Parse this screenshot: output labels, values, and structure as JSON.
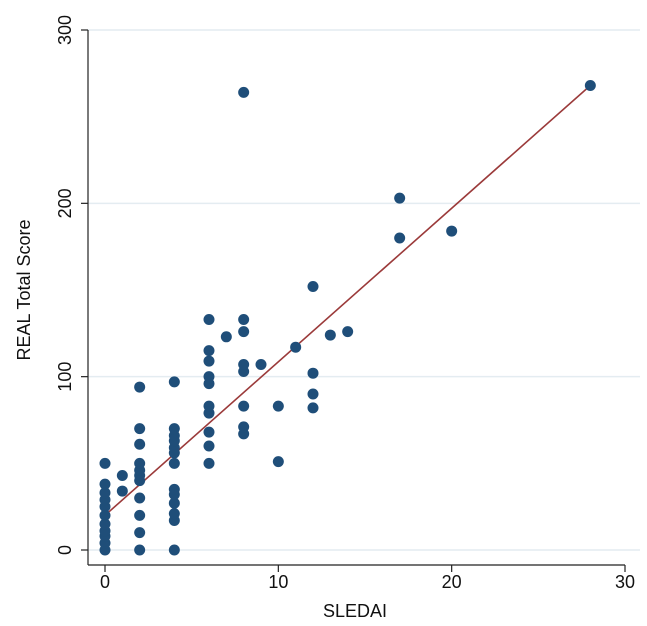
{
  "chart_data": {
    "type": "scatter",
    "xlabel": "SLEDAI",
    "ylabel": "REAL Total Score",
    "xlim": [
      0,
      30
    ],
    "ylim": [
      0,
      300
    ],
    "xticks": [
      0,
      10,
      20,
      30
    ],
    "yticks": [
      0,
      100,
      200,
      300
    ],
    "grid": "horizontal",
    "colors": {
      "point": "#1f4e79",
      "fit_line": "#9b3a3a",
      "grid": "#e4ecf1",
      "axis": "#222222"
    },
    "points": [
      {
        "x": 0,
        "y": 0
      },
      {
        "x": 0,
        "y": 4
      },
      {
        "x": 0,
        "y": 8
      },
      {
        "x": 0,
        "y": 11
      },
      {
        "x": 0,
        "y": 15
      },
      {
        "x": 0,
        "y": 20
      },
      {
        "x": 0,
        "y": 25
      },
      {
        "x": 0,
        "y": 29
      },
      {
        "x": 0,
        "y": 33
      },
      {
        "x": 0,
        "y": 38
      },
      {
        "x": 0,
        "y": 50
      },
      {
        "x": 1,
        "y": 34
      },
      {
        "x": 1,
        "y": 43
      },
      {
        "x": 2,
        "y": 0
      },
      {
        "x": 2,
        "y": 10
      },
      {
        "x": 2,
        "y": 20
      },
      {
        "x": 2,
        "y": 30
      },
      {
        "x": 2,
        "y": 40
      },
      {
        "x": 2,
        "y": 43
      },
      {
        "x": 2,
        "y": 46
      },
      {
        "x": 2,
        "y": 50
      },
      {
        "x": 2,
        "y": 61
      },
      {
        "x": 2,
        "y": 70
      },
      {
        "x": 2,
        "y": 94
      },
      {
        "x": 4,
        "y": 0
      },
      {
        "x": 4,
        "y": 17
      },
      {
        "x": 4,
        "y": 21
      },
      {
        "x": 4,
        "y": 27
      },
      {
        "x": 4,
        "y": 32
      },
      {
        "x": 4,
        "y": 35
      },
      {
        "x": 4,
        "y": 50
      },
      {
        "x": 4,
        "y": 56
      },
      {
        "x": 4,
        "y": 59
      },
      {
        "x": 4,
        "y": 63
      },
      {
        "x": 4,
        "y": 66
      },
      {
        "x": 4,
        "y": 70
      },
      {
        "x": 4,
        "y": 97
      },
      {
        "x": 6,
        "y": 50
      },
      {
        "x": 6,
        "y": 60
      },
      {
        "x": 6,
        "y": 68
      },
      {
        "x": 6,
        "y": 79
      },
      {
        "x": 6,
        "y": 83
      },
      {
        "x": 6,
        "y": 96
      },
      {
        "x": 6,
        "y": 100
      },
      {
        "x": 6,
        "y": 109
      },
      {
        "x": 6,
        "y": 115
      },
      {
        "x": 6,
        "y": 133
      },
      {
        "x": 7,
        "y": 123
      },
      {
        "x": 8,
        "y": 67
      },
      {
        "x": 8,
        "y": 71
      },
      {
        "x": 8,
        "y": 83
      },
      {
        "x": 8,
        "y": 103
      },
      {
        "x": 8,
        "y": 107
      },
      {
        "x": 8,
        "y": 126
      },
      {
        "x": 8,
        "y": 133
      },
      {
        "x": 8,
        "y": 264
      },
      {
        "x": 9,
        "y": 107
      },
      {
        "x": 10,
        "y": 51
      },
      {
        "x": 10,
        "y": 83
      },
      {
        "x": 11,
        "y": 117
      },
      {
        "x": 12,
        "y": 82
      },
      {
        "x": 12,
        "y": 90
      },
      {
        "x": 12,
        "y": 102
      },
      {
        "x": 12,
        "y": 152
      },
      {
        "x": 13,
        "y": 124
      },
      {
        "x": 14,
        "y": 126
      },
      {
        "x": 17,
        "y": 180
      },
      {
        "x": 17,
        "y": 203
      },
      {
        "x": 20,
        "y": 184
      },
      {
        "x": 28,
        "y": 268
      }
    ],
    "fit_line": {
      "x": [
        0,
        28
      ],
      "y": [
        20,
        268
      ]
    }
  }
}
